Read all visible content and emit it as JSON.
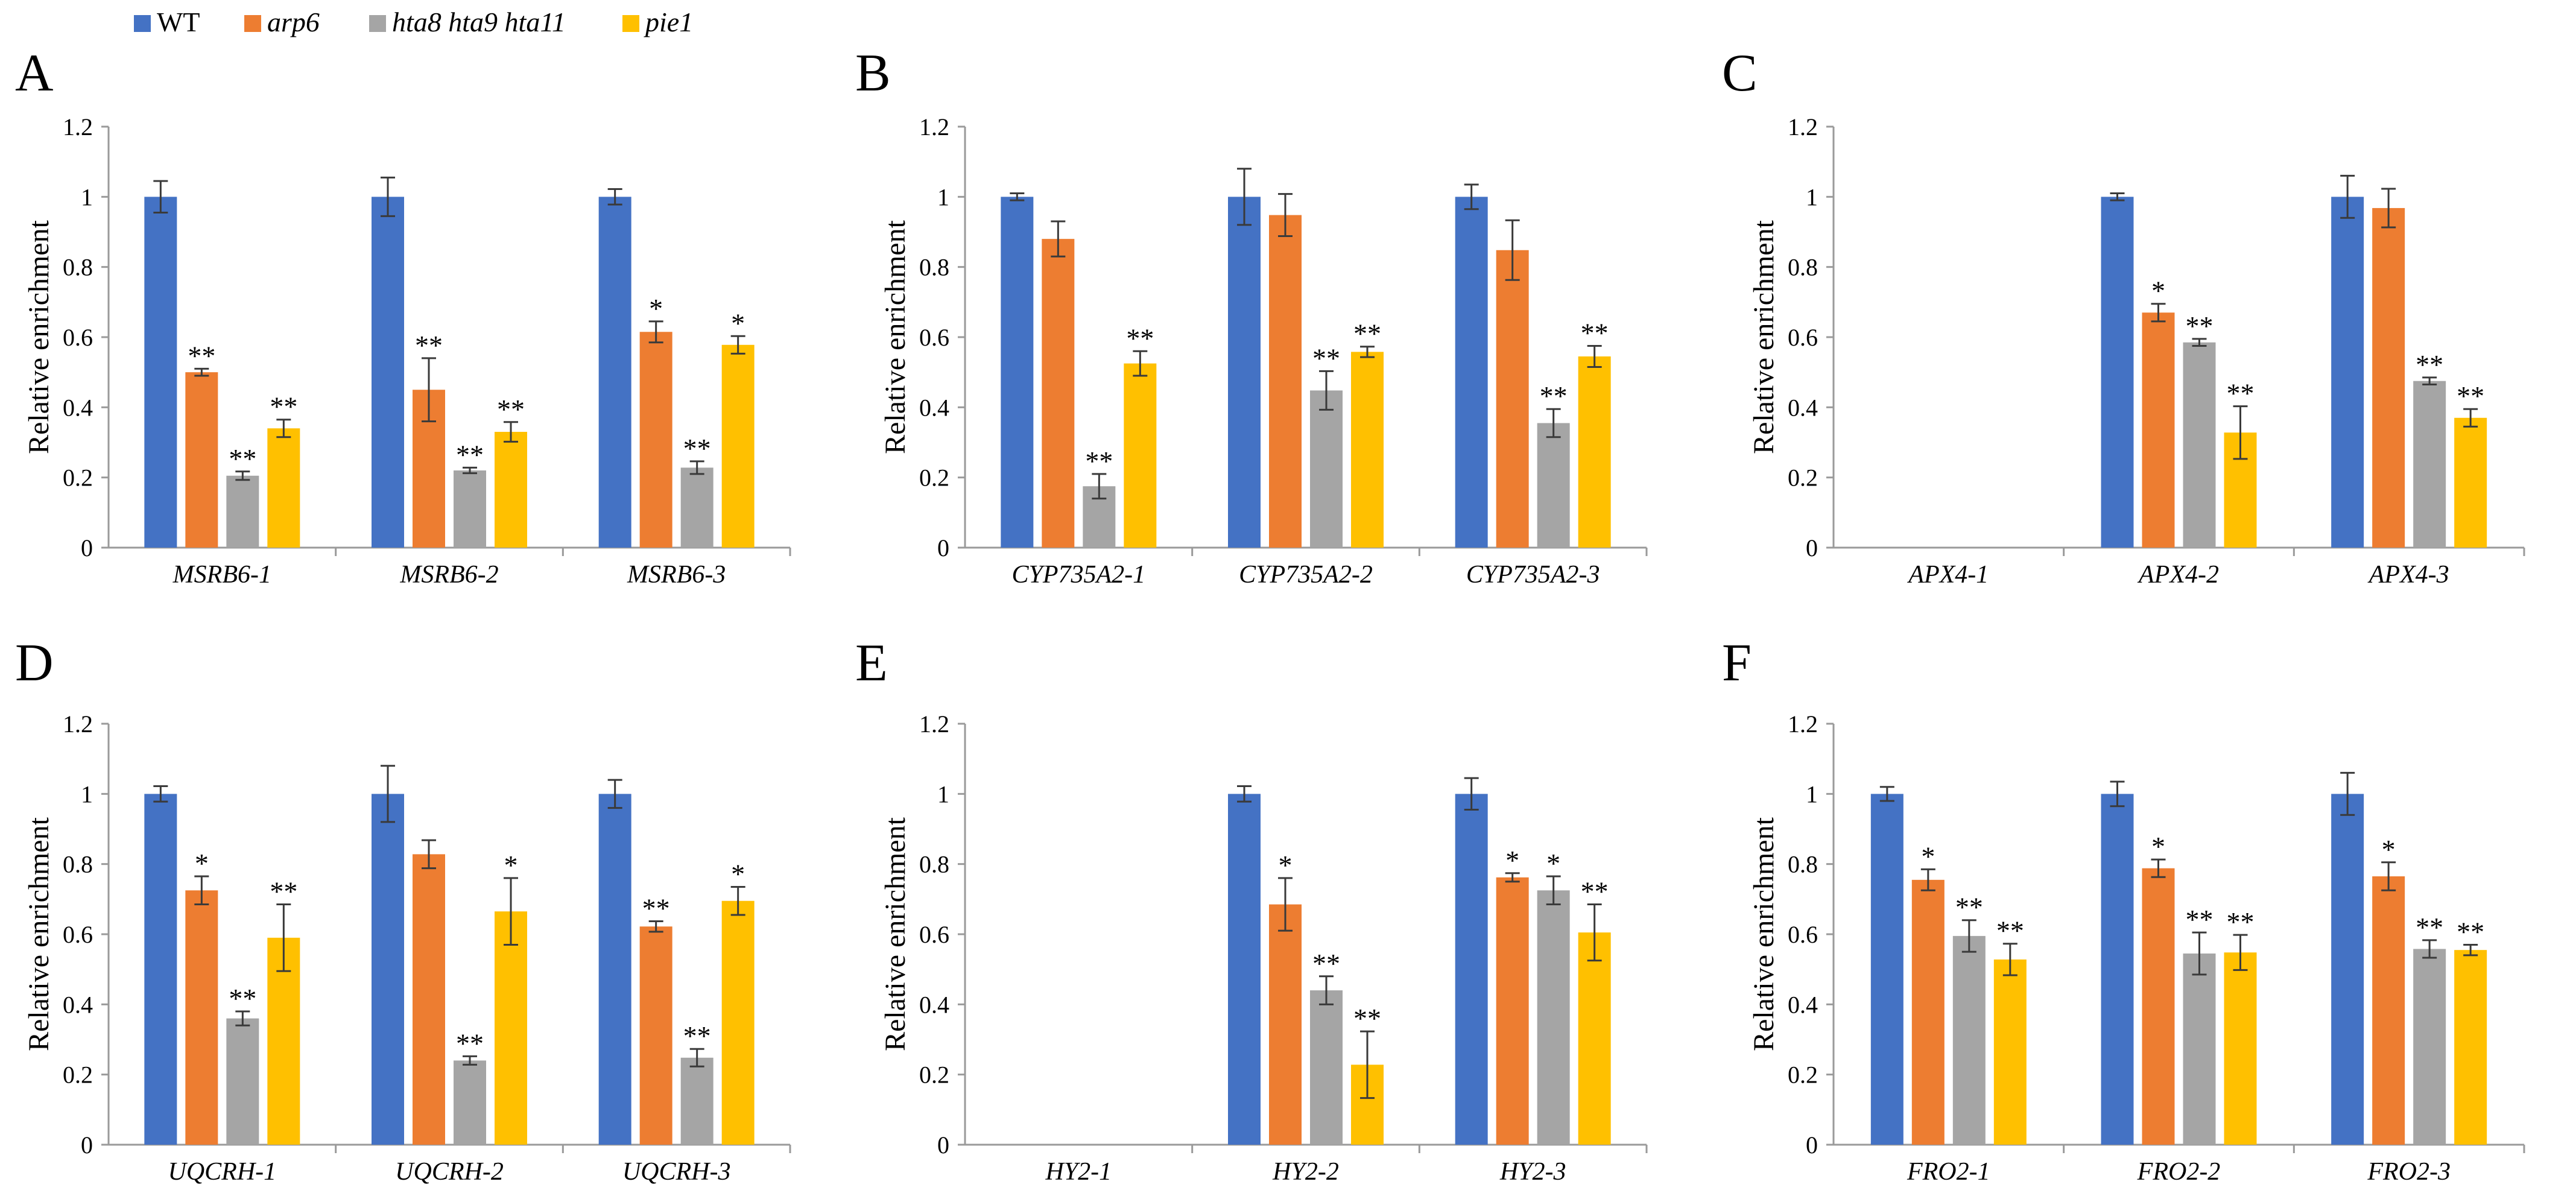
{
  "legend": [
    {
      "name": "WT",
      "color": "#4472C4",
      "italic": false
    },
    {
      "name": "arp6",
      "color": "#ED7D31",
      "italic": true
    },
    {
      "name": "hta8 hta9 hta11",
      "color": "#A5A5A5",
      "italic": true
    },
    {
      "name": "pie1",
      "color": "#FFC000",
      "italic": true
    }
  ],
  "chart_data": [
    {
      "panel": "A",
      "type": "bar",
      "ylabel": "Relative enrichment",
      "ylim": [
        0,
        1.2
      ],
      "yticks": [
        "0",
        "0.2",
        "0.4",
        "0.6",
        "0.8",
        "1",
        "1.2"
      ],
      "categories": [
        "MSRB6-1",
        "MSRB6-2",
        "MSRB6-3"
      ],
      "series": [
        {
          "name": "WT",
          "values": [
            1.0,
            1.0,
            1.0
          ],
          "errors": [
            0.045,
            0.055,
            0.022
          ],
          "sig": [
            "",
            "",
            ""
          ]
        },
        {
          "name": "arp6",
          "values": [
            0.5,
            0.45,
            0.615
          ],
          "errors": [
            0.01,
            0.09,
            0.03
          ],
          "sig": [
            "**",
            "**",
            "*"
          ]
        },
        {
          "name": "hta8 hta9 hta11",
          "values": [
            0.205,
            0.22,
            0.228
          ],
          "errors": [
            0.012,
            0.008,
            0.018
          ],
          "sig": [
            "**",
            "**",
            "**"
          ]
        },
        {
          "name": "pie1",
          "values": [
            0.34,
            0.33,
            0.578
          ],
          "errors": [
            0.025,
            0.028,
            0.025
          ],
          "sig": [
            "**",
            "**",
            "*"
          ]
        }
      ]
    },
    {
      "panel": "B",
      "type": "bar",
      "ylabel": "Relative enrichment",
      "ylim": [
        0,
        1.2
      ],
      "yticks": [
        "0",
        "0.2",
        "0.4",
        "0.6",
        "0.8",
        "1",
        "1.2"
      ],
      "categories": [
        "CYP735A2-1",
        "CYP735A2-2",
        "CYP735A2-3"
      ],
      "series": [
        {
          "name": "WT",
          "values": [
            1.0,
            1.0,
            1.0
          ],
          "errors": [
            0.01,
            0.08,
            0.035
          ],
          "sig": [
            "",
            "",
            ""
          ]
        },
        {
          "name": "arp6",
          "values": [
            0.88,
            0.948,
            0.848
          ],
          "errors": [
            0.05,
            0.06,
            0.085
          ],
          "sig": [
            "",
            "",
            ""
          ]
        },
        {
          "name": "hta8 hta9 hta11",
          "values": [
            0.175,
            0.448,
            0.355
          ],
          "errors": [
            0.035,
            0.055,
            0.04
          ],
          "sig": [
            "**",
            "**",
            "**"
          ]
        },
        {
          "name": "pie1",
          "values": [
            0.525,
            0.558,
            0.545
          ],
          "errors": [
            0.035,
            0.015,
            0.03
          ],
          "sig": [
            "**",
            "**",
            "**"
          ]
        }
      ]
    },
    {
      "panel": "C",
      "type": "bar",
      "ylabel": "Relative enrichment",
      "ylim": [
        0,
        1.2
      ],
      "yticks": [
        "0",
        "0.2",
        "0.4",
        "0.6",
        "0.8",
        "1",
        "1.2"
      ],
      "categories": [
        "APX4-1",
        "APX4-2",
        "APX4-3"
      ],
      "series": [
        {
          "name": "WT",
          "values": [
            null,
            1.0,
            1.0
          ],
          "errors": [
            null,
            0.01,
            0.06
          ],
          "sig": [
            "",
            "",
            ""
          ]
        },
        {
          "name": "arp6",
          "values": [
            null,
            0.67,
            0.968
          ],
          "errors": [
            null,
            0.025,
            0.055
          ],
          "sig": [
            "",
            "*",
            ""
          ]
        },
        {
          "name": "hta8 hta9 hta11",
          "values": [
            null,
            0.585,
            0.475
          ],
          "errors": [
            null,
            0.01,
            0.01
          ],
          "sig": [
            "",
            "**",
            "**"
          ]
        },
        {
          "name": "pie1",
          "values": [
            null,
            0.328,
            0.37
          ],
          "errors": [
            null,
            0.075,
            0.025
          ],
          "sig": [
            "",
            "**",
            "**"
          ]
        }
      ]
    },
    {
      "panel": "D",
      "type": "bar",
      "ylabel": "Relative enrichment",
      "ylim": [
        0,
        1.2
      ],
      "yticks": [
        "0",
        "0.2",
        "0.4",
        "0.6",
        "0.8",
        "1",
        "1.2"
      ],
      "categories": [
        "UQCRH-1",
        "UQCRH-2",
        "UQCRH-3"
      ],
      "series": [
        {
          "name": "WT",
          "values": [
            1.0,
            1.0,
            1.0
          ],
          "errors": [
            0.022,
            0.08,
            0.04
          ],
          "sig": [
            "",
            "",
            ""
          ]
        },
        {
          "name": "arp6",
          "values": [
            0.725,
            0.828,
            0.622
          ],
          "errors": [
            0.04,
            0.04,
            0.015
          ],
          "sig": [
            "*",
            "",
            "**"
          ]
        },
        {
          "name": "hta8 hta9 hta11",
          "values": [
            0.36,
            0.24,
            0.248
          ],
          "errors": [
            0.02,
            0.012,
            0.025
          ],
          "sig": [
            "**",
            "**",
            "**"
          ]
        },
        {
          "name": "pie1",
          "values": [
            0.59,
            0.665,
            0.695
          ],
          "errors": [
            0.095,
            0.095,
            0.04
          ],
          "sig": [
            "**",
            "*",
            "*"
          ]
        }
      ]
    },
    {
      "panel": "E",
      "type": "bar",
      "ylabel": "Relative enrichment",
      "ylim": [
        0,
        1.2
      ],
      "yticks": [
        "0",
        "0.2",
        "0.4",
        "0.6",
        "0.8",
        "1",
        "1.2"
      ],
      "categories": [
        "HY2-1",
        "HY2-2",
        "HY2-3"
      ],
      "series": [
        {
          "name": "WT",
          "values": [
            null,
            1.0,
            1.0
          ],
          "errors": [
            null,
            0.022,
            0.045
          ],
          "sig": [
            "",
            "",
            ""
          ]
        },
        {
          "name": "arp6",
          "values": [
            null,
            0.685,
            0.762
          ],
          "errors": [
            null,
            0.075,
            0.012
          ],
          "sig": [
            "",
            "*",
            "*"
          ]
        },
        {
          "name": "hta8 hta9 hta11",
          "values": [
            null,
            0.44,
            0.725
          ],
          "errors": [
            null,
            0.04,
            0.04
          ],
          "sig": [
            "",
            "**",
            "*"
          ]
        },
        {
          "name": "pie1",
          "values": [
            null,
            0.228,
            0.605
          ],
          "errors": [
            null,
            0.095,
            0.08
          ],
          "sig": [
            "",
            "**",
            "**"
          ]
        }
      ]
    },
    {
      "panel": "F",
      "type": "bar",
      "ylabel": "Relative enrichment",
      "ylim": [
        0,
        1.2
      ],
      "yticks": [
        "0",
        "0.2",
        "0.4",
        "0.6",
        "0.8",
        "1",
        "1.2"
      ],
      "categories": [
        "FRO2-1",
        "FRO2-2",
        "FRO2-3"
      ],
      "series": [
        {
          "name": "WT",
          "values": [
            1.0,
            1.0,
            1.0
          ],
          "errors": [
            0.02,
            0.035,
            0.06
          ],
          "sig": [
            "",
            "",
            ""
          ]
        },
        {
          "name": "arp6",
          "values": [
            0.755,
            0.788,
            0.765
          ],
          "errors": [
            0.03,
            0.025,
            0.04
          ],
          "sig": [
            "*",
            "*",
            "*"
          ]
        },
        {
          "name": "hta8 hta9 hta11",
          "values": [
            0.595,
            0.545,
            0.558
          ],
          "errors": [
            0.045,
            0.06,
            0.025
          ],
          "sig": [
            "**",
            "**",
            "**"
          ]
        },
        {
          "name": "pie1",
          "values": [
            0.528,
            0.548,
            0.555
          ],
          "errors": [
            0.045,
            0.05,
            0.015
          ],
          "sig": [
            "**",
            "**",
            "**"
          ]
        }
      ]
    }
  ]
}
